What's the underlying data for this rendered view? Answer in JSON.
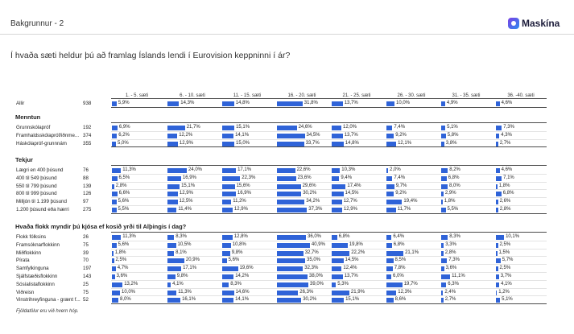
{
  "header": {
    "title": "Bakgrunnur - 2",
    "logo_text": "Maskína"
  },
  "question": "Í hvaða sæti heldur þú að framlag Íslands lendi í Eurovision keppninni í ár?",
  "columns": [
    "1. - 5. sæti",
    "6. - 10. sæti",
    "11. - 15. sæti",
    "16. - 20. sæti",
    "21. - 25. sæti",
    "26. - 30. sæti",
    "31. - 35. sæti",
    "36. -40. sæti"
  ],
  "accent_color": "#2f63d8",
  "groups": [
    {
      "title": "",
      "rows": [
        {
          "label": "Allir",
          "n": "938",
          "values": [
            "5,9%",
            "14,3%",
            "14,8%",
            "31,8%",
            "13,7%",
            "10,0%",
            "4,9%",
            "4,6%"
          ]
        }
      ]
    },
    {
      "title": "Menntun",
      "rows": [
        {
          "label": "Grunnskólapróf",
          "n": "192",
          "values": [
            "6,9%",
            "21,7%",
            "15,1%",
            "24,6%",
            "12,0%",
            "7,4%",
            "5,1%",
            "7,3%"
          ]
        },
        {
          "label": "Framhaldsskólapróf/iðnme...",
          "n": "374",
          "values": [
            "6,2%",
            "12,2%",
            "14,1%",
            "34,5%",
            "13,7%",
            "9,2%",
            "5,8%",
            "4,3%"
          ]
        },
        {
          "label": "Háskólapróf-grunnnám",
          "n": "355",
          "values": [
            "5,0%",
            "12,9%",
            "15,0%",
            "33,7%",
            "14,8%",
            "12,1%",
            "3,8%",
            "2,7%"
          ]
        }
      ]
    },
    {
      "title": "Tekjur",
      "rows": [
        {
          "label": "Lægri en 400 þúsund",
          "n": "76",
          "values": [
            "11,3%",
            "24,0%",
            "17,1%",
            "22,6%",
            "10,3%",
            "2,0%",
            "8,2%",
            "4,6%"
          ]
        },
        {
          "label": "400 til 549 þúsund",
          "n": "88",
          "values": [
            "6,5%",
            "16,9%",
            "22,3%",
            "23,6%",
            "9,4%",
            "7,4%",
            "6,8%",
            "7,1%"
          ]
        },
        {
          "label": "550 til 799 þúsund",
          "n": "139",
          "values": [
            "2,8%",
            "15,1%",
            "15,6%",
            "29,6%",
            "17,4%",
            "9,7%",
            "8,0%",
            "1,8%"
          ]
        },
        {
          "label": "800 til 999 þúsund",
          "n": "126",
          "values": [
            "6,6%",
            "12,9%",
            "16,9%",
            "30,2%",
            "14,5%",
            "9,2%",
            "2,9%",
            "6,8%"
          ]
        },
        {
          "label": "Milljón til 1.199 þúsund",
          "n": "97",
          "values": [
            "5,6%",
            "12,5%",
            "11,2%",
            "34,2%",
            "12,7%",
            "19,4%",
            "1,8%",
            "2,6%"
          ]
        },
        {
          "label": "1.200 þúsund eða hærri",
          "n": "275",
          "values": [
            "5,5%",
            "11,4%",
            "12,9%",
            "37,3%",
            "12,9%",
            "11,7%",
            "5,5%",
            "2,8%"
          ]
        }
      ]
    },
    {
      "title": "Hvaða flokk myndir þú kjósa ef kosið yrði til Alþingis í dag?",
      "rows": [
        {
          "label": "Flokk fólksins",
          "n": "26",
          "values": [
            "11,3%",
            "8,3%",
            "12,8%",
            "36,0%",
            "6,8%",
            "6,4%",
            "8,3%",
            "10,1%"
          ]
        },
        {
          "label": "Framsóknarflokkinn",
          "n": "75",
          "values": [
            "5,6%",
            "10,5%",
            "10,8%",
            "40,9%",
            "19,8%",
            "6,8%",
            "3,3%",
            "2,5%"
          ]
        },
        {
          "label": "Miðflokkinn",
          "n": "39",
          "values": [
            "1,8%",
            "8,1%",
            "9,8%",
            "32,7%",
            "22,2%",
            "21,1%",
            "2,8%",
            "1,5%"
          ]
        },
        {
          "label": "Pírata",
          "n": "70",
          "values": [
            "2,5%",
            "20,9%",
            "5,6%",
            "35,0%",
            "14,5%",
            "8,5%",
            "7,3%",
            "5,7%"
          ]
        },
        {
          "label": "Samfylkinguna",
          "n": "197",
          "values": [
            "4,7%",
            "17,1%",
            "19,6%",
            "32,3%",
            "12,4%",
            "7,8%",
            "3,6%",
            "2,5%"
          ]
        },
        {
          "label": "Sjálfstæðisflokkinn",
          "n": "143",
          "values": [
            "3,6%",
            "9,8%",
            "14,2%",
            "38,0%",
            "13,7%",
            "6,0%",
            "11,1%",
            "3,7%"
          ]
        },
        {
          "label": "Sósíalistaflokkinn",
          "n": "25",
          "values": [
            "13,2%",
            "4,1%",
            "8,3%",
            "39,0%",
            "5,3%",
            "19,7%",
            "6,3%",
            "4,1%"
          ]
        },
        {
          "label": "Viðreisn",
          "n": "75",
          "values": [
            "10,0%",
            "11,3%",
            "14,6%",
            "26,3%",
            "21,9%",
            "12,3%",
            "2,4%",
            "1,2%"
          ]
        },
        {
          "label": "Vinstrihreyfinguna - grænt f...",
          "n": "52",
          "values": [
            "8,0%",
            "16,1%",
            "14,1%",
            "30,2%",
            "15,1%",
            "8,6%",
            "2,7%",
            "5,1%"
          ]
        }
      ]
    }
  ],
  "footnote": "Fjöldatölur eru við hvern hóp."
}
